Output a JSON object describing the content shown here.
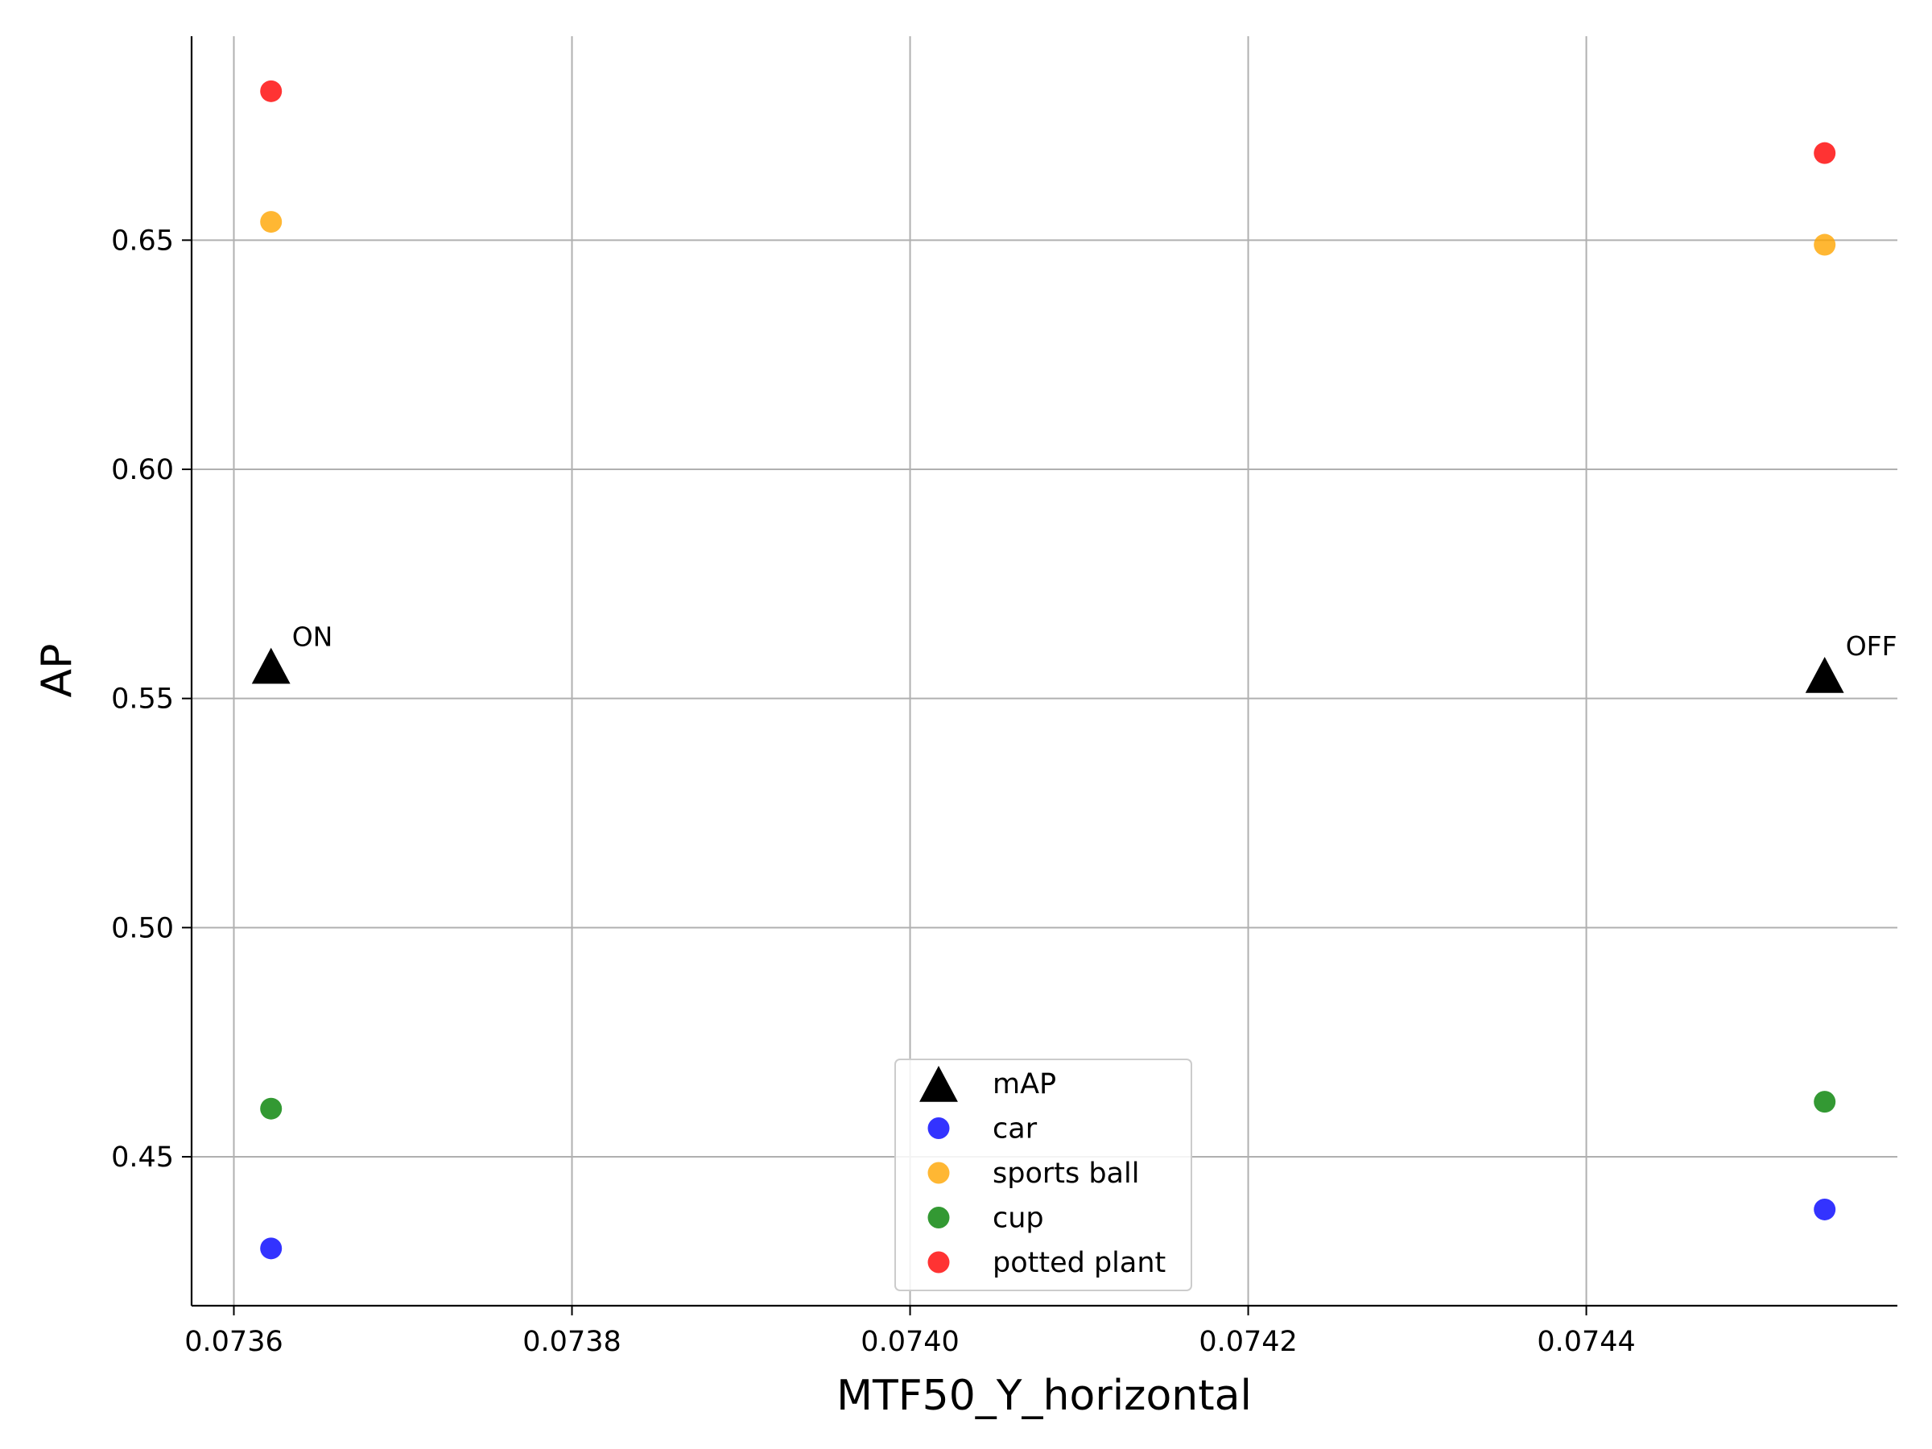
{
  "chart_data": {
    "type": "scatter",
    "xlabel": "MTF50_Y_horizontal",
    "ylabel": "AP",
    "xlim": [
      0.073575,
      0.074584
    ],
    "ylim": [
      0.4175,
      0.6945
    ],
    "x_ticks": [
      0.0736,
      0.0738,
      0.074,
      0.0742,
      0.0744
    ],
    "x_tick_labels": [
      "0.0736",
      "0.0738",
      "0.0740",
      "0.0742",
      "0.0744"
    ],
    "y_ticks": [
      0.45,
      0.5,
      0.55,
      0.6,
      0.65
    ],
    "y_tick_labels": [
      "0.45",
      "0.50",
      "0.55",
      "0.60",
      "0.65"
    ],
    "grid": true,
    "legend_position": "bottom-center",
    "series": [
      {
        "name": "mAP",
        "marker": "triangle",
        "color": "#000000",
        "x": [
          0.073622,
          0.074541
        ],
        "y": [
          0.5565,
          0.5545
        ]
      },
      {
        "name": "car",
        "marker": "circle",
        "color": "#0000ff",
        "x": [
          0.073622,
          0.074541
        ],
        "y": [
          0.43,
          0.4385
        ]
      },
      {
        "name": "sports ball",
        "marker": "circle",
        "color": "#ffa500",
        "x": [
          0.073622,
          0.074541
        ],
        "y": [
          0.654,
          0.649
        ]
      },
      {
        "name": "cup",
        "marker": "circle",
        "color": "#008000",
        "x": [
          0.073622,
          0.074541
        ],
        "y": [
          0.4605,
          0.462
        ]
      },
      {
        "name": "potted plant",
        "marker": "circle",
        "color": "#ff0000",
        "x": [
          0.073622,
          0.074541
        ],
        "y": [
          0.6825,
          0.669
        ]
      }
    ],
    "annotations": [
      {
        "text": "ON",
        "x": 0.073622,
        "y": 0.5565
      },
      {
        "text": "OFF",
        "x": 0.074541,
        "y": 0.5545
      }
    ]
  }
}
